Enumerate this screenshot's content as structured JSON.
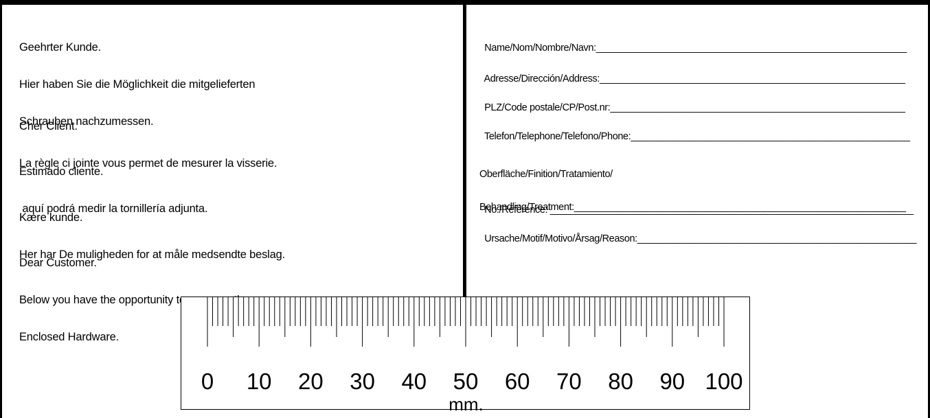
{
  "messages": [
    {
      "lines": [
        "Geehrter Kunde.",
        "Hier haben Sie die Möglichkeit die mitgelieferten",
        "Schrauben nachzumessen."
      ]
    },
    {
      "lines": [
        "Cher Client.",
        "La règle ci jointe vous permet de mesurer la visserie."
      ]
    },
    {
      "lines": [
        "Estimado cliente.",
        " aquí podrá medir la tornillería adjunta."
      ]
    },
    {
      "lines": [
        "Kære kunde.",
        "Her har De muligheden for at måle medsendte beslag."
      ]
    },
    {
      "lines": [
        "Dear Customer.",
        "Below you have the opportunity to messure the",
        "Enclosed Hardware."
      ]
    }
  ],
  "form_fields": [
    {
      "label": "Name/Nom/Nombre/Navn:"
    },
    {
      "label": "Adresse/Dirección/Address:"
    },
    {
      "label": "PLZ/Code postale/CP/Post.nr:"
    },
    {
      "label": "Telefon/Telephone/Telefono/Phone:"
    },
    {
      "label_line1": "Oberfläche/Finition/Tratamiento/",
      "label": "Behandling/Treatment:"
    },
    {
      "label": "No./Référence: "
    },
    {
      "label": "Ursache/Motif/Motivo/Årsag/Reason:"
    }
  ],
  "ruler": {
    "min_mm": 0,
    "max_mm": 100,
    "labels": [
      "0",
      "10",
      "20",
      "30",
      "40",
      "50",
      "60",
      "70",
      "80",
      "90",
      "100"
    ],
    "unit": "mm."
  }
}
